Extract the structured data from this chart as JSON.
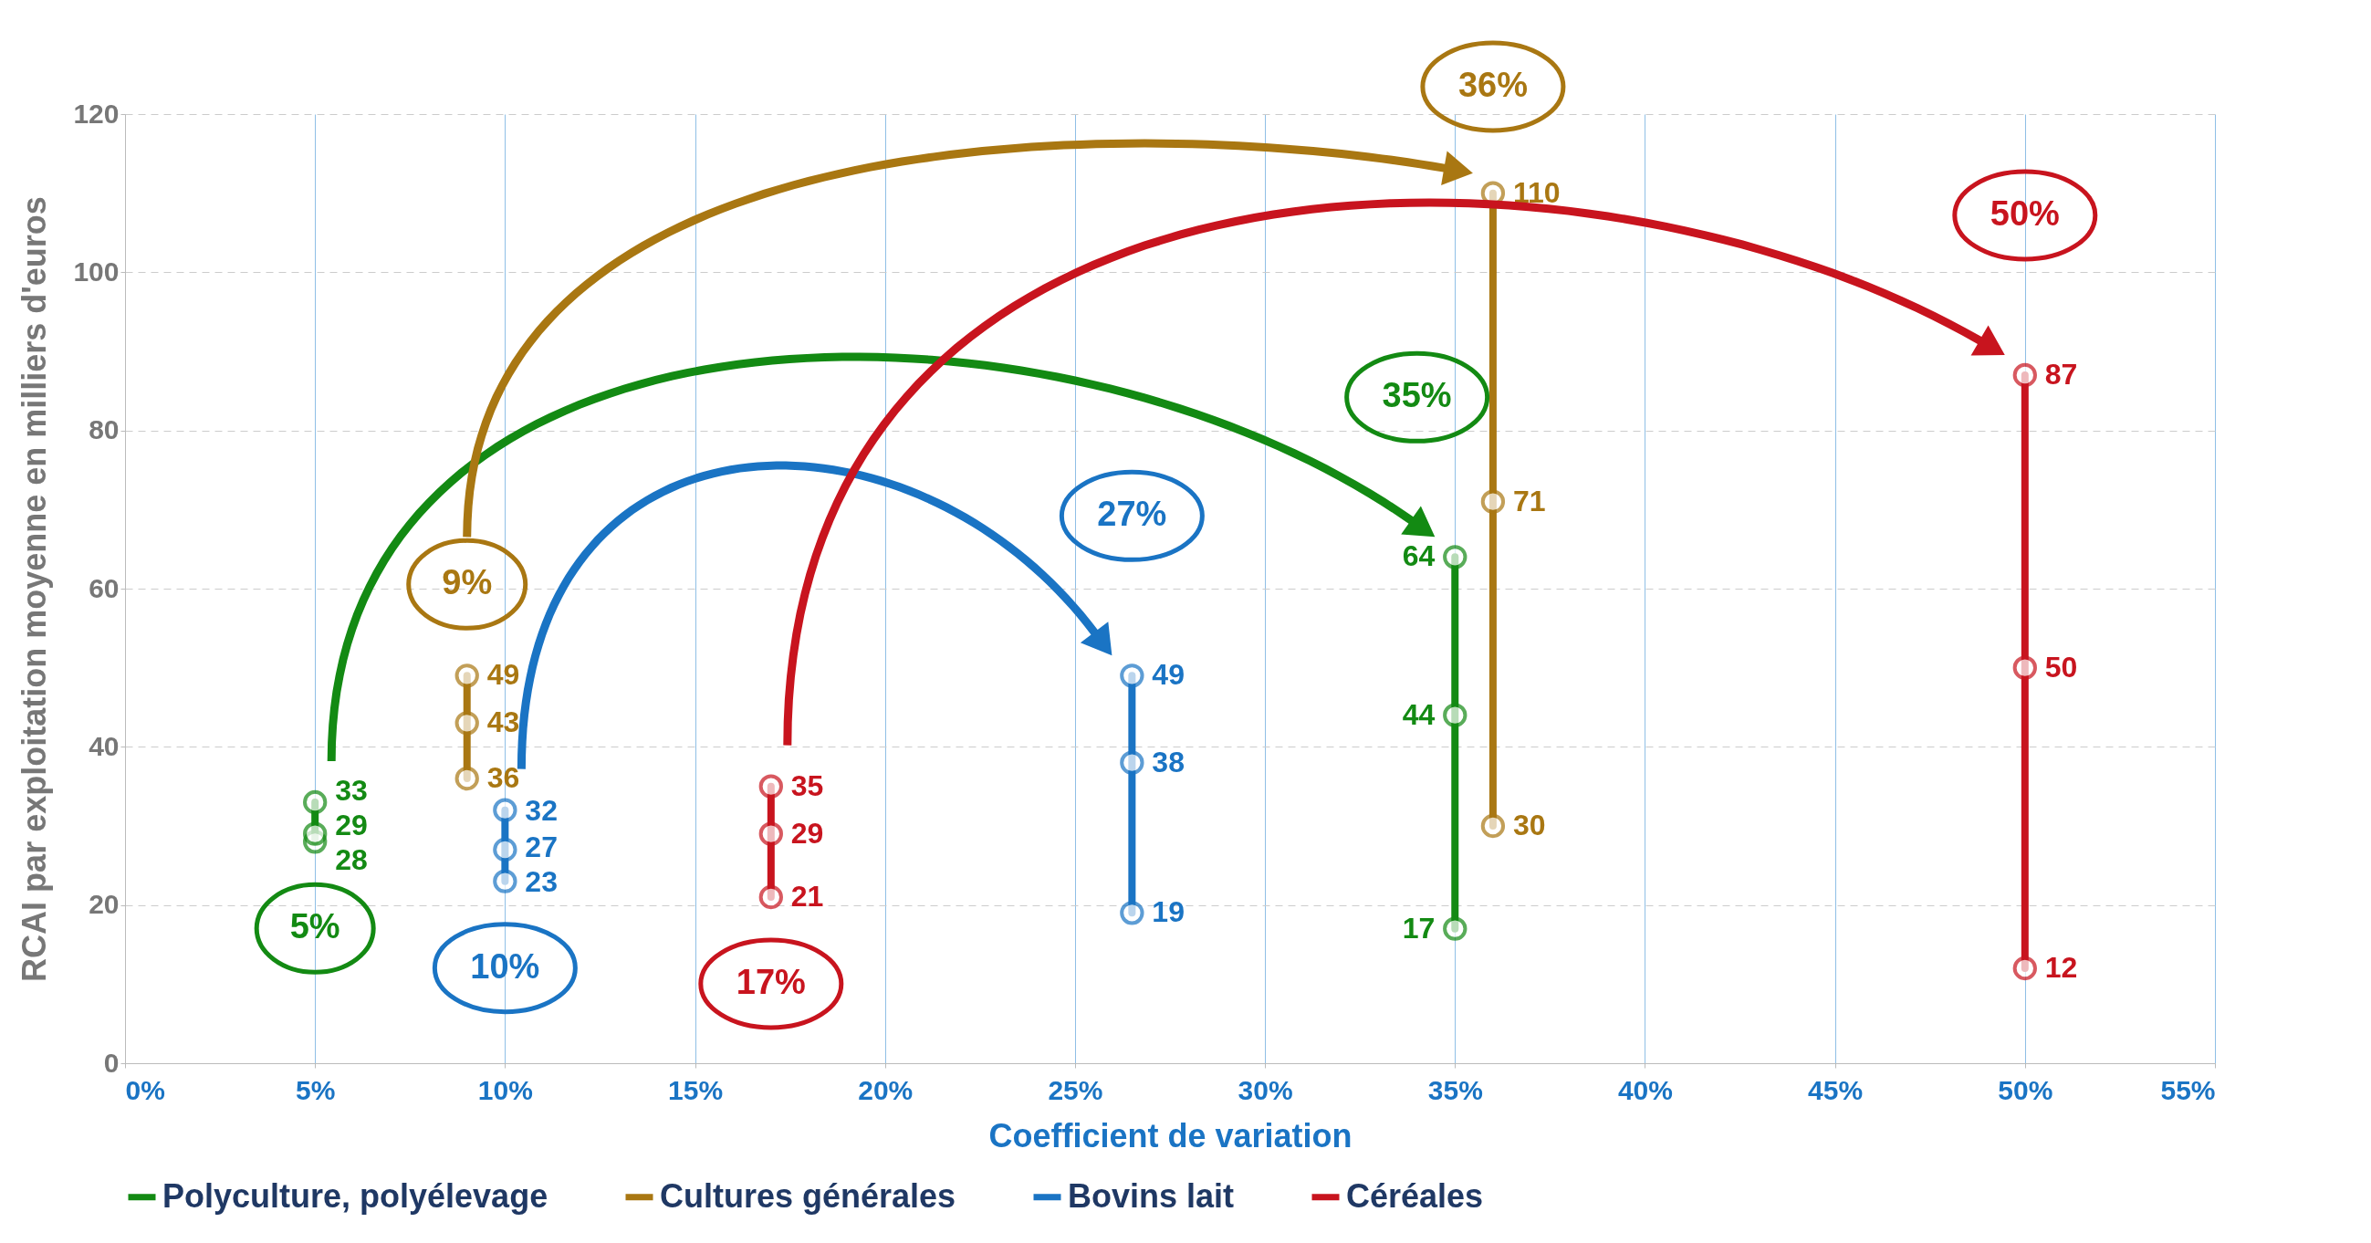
{
  "chart_data": {
    "type": "line",
    "xlabel": "Coefficient de variation",
    "ylabel": "RCAI par exploitation moyenne en milliers d'euros",
    "xlim": [
      0,
      55
    ],
    "xticks": [
      {
        "value": 0,
        "label": "0%"
      },
      {
        "value": 5,
        "label": "5%"
      },
      {
        "value": 10,
        "label": "10%"
      },
      {
        "value": 15,
        "label": "15%"
      },
      {
        "value": 20,
        "label": "20%"
      },
      {
        "value": 25,
        "label": "25%"
      },
      {
        "value": 30,
        "label": "30%"
      },
      {
        "value": 35,
        "label": "35%"
      },
      {
        "value": 40,
        "label": "40%"
      },
      {
        "value": 45,
        "label": "45%"
      },
      {
        "value": 50,
        "label": "50%"
      },
      {
        "value": 55,
        "label": "55%"
      }
    ],
    "ylim": [
      0,
      120
    ],
    "yticks": [
      0,
      20,
      40,
      60,
      80,
      100,
      120
    ],
    "grid": true,
    "legend": "bottom",
    "marker": "circle",
    "line_style": "solid",
    "data_labels": true,
    "series": [
      {
        "name": "Polyculture, polyélevage",
        "color": "#138a13",
        "x": [
          5,
          5,
          5,
          35,
          35,
          35
        ],
        "values": [
          28,
          29,
          33,
          17,
          44,
          64
        ]
      },
      {
        "name": "Cultures générales",
        "color": "#a97712",
        "x": [
          9,
          9,
          9,
          36,
          36,
          36
        ],
        "values": [
          36,
          43,
          49,
          30,
          71,
          110
        ]
      },
      {
        "name": "Bovins lait",
        "color": "#1a74c4",
        "x": [
          10,
          10,
          10,
          26.5,
          26.5,
          26.5
        ],
        "values": [
          23,
          27,
          32,
          19,
          38,
          49
        ]
      },
      {
        "name": "Céréales",
        "color": "#c8141e",
        "x": [
          17,
          17,
          17,
          50,
          50,
          50
        ],
        "values": [
          21,
          29,
          35,
          12,
          50,
          87
        ]
      }
    ],
    "annotations": [
      "5%",
      "35%",
      "9%",
      "36%",
      "10%",
      "27%",
      "17%",
      "50%"
    ]
  }
}
